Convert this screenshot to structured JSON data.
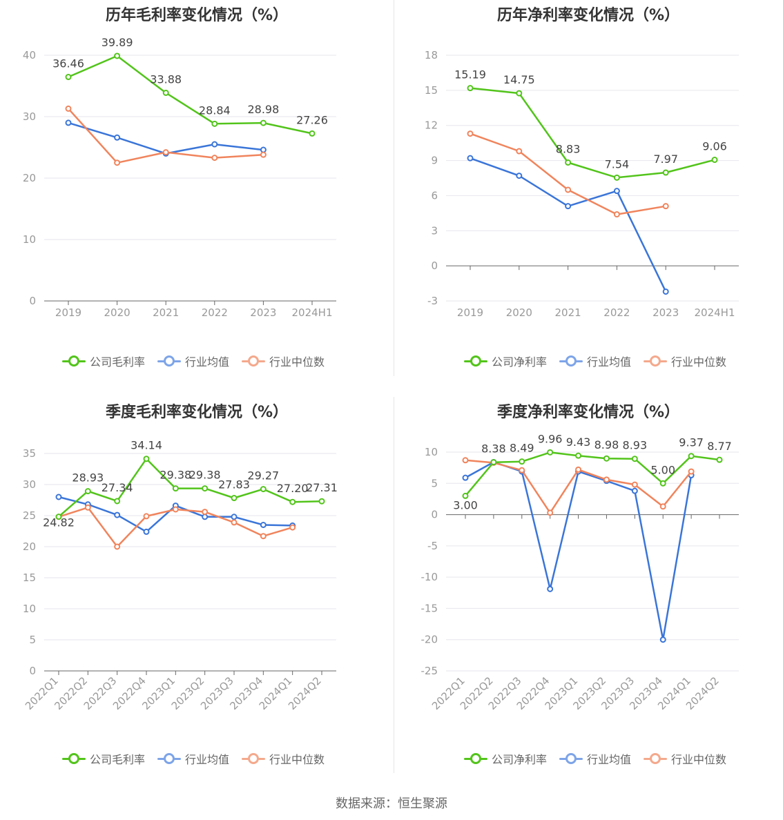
{
  "colors": {
    "company": "#52c41a",
    "avg": "#3a75d8",
    "median": "#f0845c",
    "grid": "#e6e6ee",
    "axis": "#666666",
    "tick": "#999999",
    "label": "#444444"
  },
  "legend": {
    "company_gross": "公司毛利率",
    "company_net": "公司净利率",
    "industry_avg": "行业均值",
    "industry_median": "行业中位数"
  },
  "source_text": "数据来源：恒生聚源",
  "chart_data": [
    {
      "type": "line",
      "title": "历年毛利率变化情况（%）",
      "categories": [
        "2019",
        "2020",
        "2021",
        "2022",
        "2023",
        "2024H1"
      ],
      "ylim": [
        0,
        40
      ],
      "yticks": [
        0,
        10,
        20,
        30,
        40
      ],
      "grid": true,
      "legend_position": "bottom",
      "series": [
        {
          "name": "公司毛利率",
          "values": [
            36.46,
            39.89,
            33.88,
            28.84,
            28.98,
            27.26
          ],
          "labels": [
            "36.46",
            "39.89",
            "33.88",
            "28.84",
            "28.98",
            "27.26"
          ]
        },
        {
          "name": "行业均值",
          "values": [
            29.0,
            26.6,
            24.0,
            25.5,
            24.6,
            null
          ]
        },
        {
          "name": "行业中位数",
          "values": [
            31.3,
            22.5,
            24.2,
            23.3,
            23.8,
            null
          ]
        }
      ]
    },
    {
      "type": "line",
      "title": "历年净利率变化情况（%）",
      "categories": [
        "2019",
        "2020",
        "2021",
        "2022",
        "2023",
        "2024H1"
      ],
      "ylim": [
        -3,
        18
      ],
      "yticks": [
        -3,
        0,
        3,
        6,
        9,
        12,
        15,
        18
      ],
      "grid": true,
      "legend_position": "bottom",
      "series": [
        {
          "name": "公司净利率",
          "values": [
            15.19,
            14.75,
            8.83,
            7.54,
            7.97,
            9.06
          ],
          "labels": [
            "15.19",
            "14.75",
            "8.83",
            "7.54",
            "7.97",
            "9.06"
          ]
        },
        {
          "name": "行业均值",
          "values": [
            9.2,
            7.7,
            5.1,
            6.4,
            -2.2,
            null
          ]
        },
        {
          "name": "行业中位数",
          "values": [
            11.3,
            9.8,
            6.5,
            4.4,
            5.1,
            null
          ]
        }
      ]
    },
    {
      "type": "line",
      "title": "季度毛利率变化情况（%）",
      "categories": [
        "2022Q1",
        "2022Q2",
        "2022Q3",
        "2022Q4",
        "2023Q1",
        "2023Q2",
        "2023Q3",
        "2023Q4",
        "2024Q1",
        "2024Q2"
      ],
      "ylim": [
        0,
        35
      ],
      "yticks": [
        0,
        5,
        10,
        15,
        20,
        25,
        30,
        35
      ],
      "grid": true,
      "legend_position": "bottom",
      "rotate_x_labels": true,
      "series": [
        {
          "name": "公司毛利率",
          "values": [
            24.82,
            28.93,
            27.34,
            34.14,
            29.38,
            29.38,
            27.83,
            29.27,
            27.2,
            27.31
          ],
          "labels": [
            "24.82",
            "28.93",
            "27.34",
            "34.14",
            "29.38",
            "29.38",
            "27.83",
            "29.27",
            "27.20",
            "27.31"
          ]
        },
        {
          "name": "行业均值",
          "values": [
            28.0,
            26.8,
            25.1,
            22.4,
            26.6,
            24.8,
            24.8,
            23.5,
            23.4,
            null
          ]
        },
        {
          "name": "行业中位数",
          "values": [
            24.8,
            26.3,
            20.0,
            24.9,
            26.0,
            25.6,
            23.9,
            21.7,
            23.1,
            null
          ]
        }
      ]
    },
    {
      "type": "line",
      "title": "季度净利率变化情况（%）",
      "categories": [
        "2022Q1",
        "2022Q2",
        "2022Q3",
        "2022Q4",
        "2023Q1",
        "2023Q2",
        "2023Q3",
        "2023Q4",
        "2024Q1",
        "2024Q2"
      ],
      "ylim": [
        -25,
        10
      ],
      "yticks": [
        -25,
        -20,
        -15,
        -10,
        -5,
        0,
        5,
        10
      ],
      "grid": true,
      "legend_position": "bottom",
      "rotate_x_labels": true,
      "series": [
        {
          "name": "公司净利率",
          "values": [
            3.0,
            8.38,
            8.49,
            9.96,
            9.43,
            8.98,
            8.93,
            5.0,
            9.37,
            8.77
          ],
          "labels": [
            "3.00",
            "8.38",
            "8.49",
            "9.96",
            "9.43",
            "8.98",
            "8.93",
            "5.00",
            "9.37",
            "8.77"
          ]
        },
        {
          "name": "行业均值",
          "values": [
            5.9,
            8.4,
            6.9,
            -11.9,
            6.9,
            5.4,
            3.8,
            -20.0,
            6.3,
            null
          ]
        },
        {
          "name": "行业中位数",
          "values": [
            8.7,
            8.3,
            7.1,
            0.3,
            7.2,
            5.6,
            4.8,
            1.3,
            6.9,
            null
          ]
        }
      ]
    }
  ]
}
